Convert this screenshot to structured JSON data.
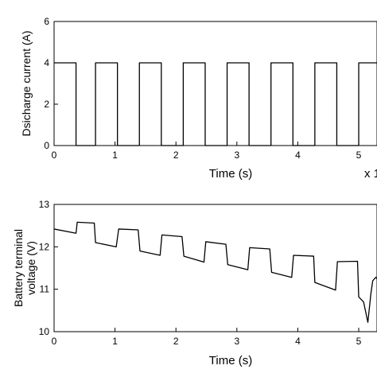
{
  "chart_data": [
    {
      "type": "line",
      "title": "",
      "xlabel": "Time (s)",
      "ylabel": "Dsicharge current (A)",
      "x_multiplier_label": "x 1",
      "xlim": [
        0,
        5.3
      ],
      "ylim": [
        0,
        6
      ],
      "xticks": [
        "0",
        "1",
        "2",
        "3",
        "4",
        "5"
      ],
      "yticks": [
        "0",
        "2",
        "4",
        "6"
      ],
      "grid": false,
      "series": [
        {
          "x": [
            0,
            0.36,
            0.36,
            0.68,
            0.68,
            1.04,
            1.04,
            1.4,
            1.4,
            1.76,
            1.76,
            2.12,
            2.12,
            2.48,
            2.48,
            2.84,
            2.84,
            3.2,
            3.2,
            3.56,
            3.56,
            3.92,
            3.92,
            4.28,
            4.28,
            4.64,
            4.64,
            5.0,
            5.0,
            5.3
          ],
          "y": [
            4,
            4,
            0,
            0,
            4,
            4,
            0,
            0,
            4,
            4,
            0,
            0,
            4,
            4,
            0,
            0,
            4,
            4,
            0,
            0,
            4,
            4,
            0,
            0,
            4,
            4,
            0,
            0,
            4,
            4
          ]
        }
      ]
    },
    {
      "type": "line",
      "title": "",
      "xlabel": "Time (s)",
      "ylabel": "Battery terminal voltage (V)",
      "xlim": [
        0,
        5.3
      ],
      "ylim": [
        10,
        13
      ],
      "xticks": [
        "0",
        "1",
        "2",
        "3",
        "4",
        "5"
      ],
      "yticks": [
        "10",
        "11",
        "12",
        "13"
      ],
      "grid": false,
      "series": [
        {
          "x": [
            0,
            0.36,
            0.38,
            0.66,
            0.68,
            1.02,
            1.06,
            1.38,
            1.41,
            1.74,
            1.77,
            2.1,
            2.13,
            2.46,
            2.49,
            2.82,
            2.85,
            3.18,
            3.21,
            3.54,
            3.57,
            3.9,
            3.93,
            4.26,
            4.28,
            4.62,
            4.65,
            4.98,
            5.0,
            5.08,
            5.15,
            5.2,
            5.23,
            5.28,
            5.3
          ],
          "y": [
            12.42,
            12.32,
            12.58,
            12.56,
            12.1,
            12.0,
            12.42,
            12.4,
            11.9,
            11.8,
            12.28,
            12.24,
            11.78,
            11.64,
            12.12,
            12.06,
            11.58,
            11.46,
            11.98,
            11.95,
            11.4,
            11.28,
            11.8,
            11.78,
            11.16,
            10.98,
            11.65,
            11.66,
            10.82,
            10.7,
            10.22,
            10.9,
            11.2,
            11.28,
            11.25
          ]
        }
      ]
    }
  ]
}
